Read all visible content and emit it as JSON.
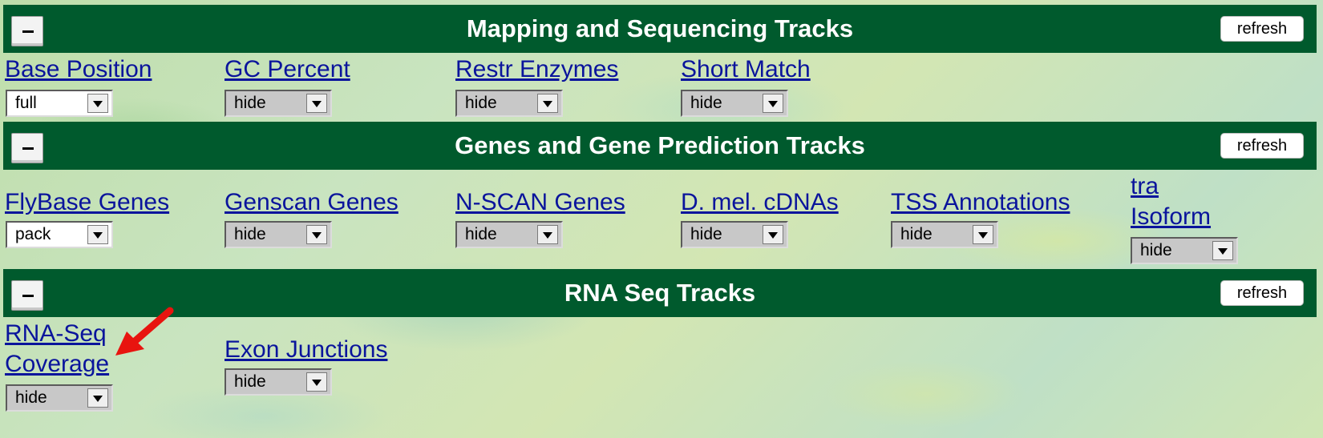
{
  "sections": [
    {
      "title": "Mapping and Sequencing Tracks",
      "refresh_label": "refresh",
      "tracks": [
        {
          "label": "Base Position",
          "value": "full"
        },
        {
          "label": "GC Percent",
          "value": "hide"
        },
        {
          "label": "Restr Enzymes",
          "value": "hide"
        },
        {
          "label": "Short Match",
          "value": "hide"
        }
      ]
    },
    {
      "title": "Genes and Gene Prediction Tracks",
      "refresh_label": "refresh",
      "tracks": [
        {
          "label": "FlyBase Genes",
          "value": "pack"
        },
        {
          "label": "Genscan Genes",
          "value": "hide"
        },
        {
          "label": "N-SCAN Genes",
          "value": "hide"
        },
        {
          "label": "D. mel. cDNAs",
          "value": "hide"
        },
        {
          "label": "TSS Annotations",
          "value": "hide"
        },
        {
          "label_line1": "tra",
          "label_line2": "Isoform",
          "value": "hide"
        }
      ]
    },
    {
      "title": "RNA Seq Tracks",
      "refresh_label": "refresh",
      "tracks": [
        {
          "label_line1": "RNA-Seq",
          "label_line2": "Coverage",
          "value": "hide"
        },
        {
          "label": "Exon Junctions",
          "value": "hide"
        }
      ]
    }
  ],
  "annotation": {
    "icon": "red-arrow-icon",
    "color": "#e8140f"
  }
}
